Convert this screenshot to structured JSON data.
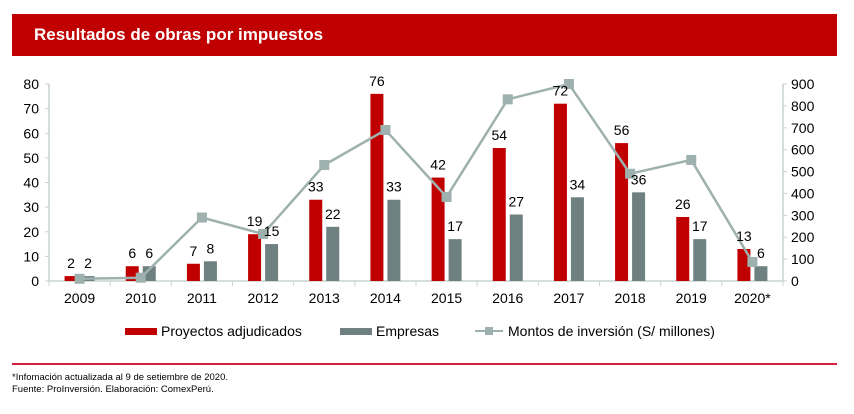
{
  "header": {
    "title": "Resultados de obras por impuestos"
  },
  "colors": {
    "banner": "#C00000",
    "proyectos": "#C00000",
    "empresas": "#6E8080",
    "montos": "#9FB1AE",
    "axis": "#C8D4D2",
    "separator": "#D6203C"
  },
  "chart_data": {
    "type": "bar",
    "title": "Resultados de obras por impuestos",
    "categories": [
      "2009",
      "2010",
      "2011",
      "2012",
      "2013",
      "2014",
      "2015",
      "2016",
      "2017",
      "2018",
      "2019",
      "2020*"
    ],
    "series": [
      {
        "name": "Proyectos adjudicados",
        "type": "bar",
        "axis": "left",
        "values": [
          2,
          6,
          7,
          19,
          33,
          76,
          42,
          54,
          72,
          56,
          26,
          13
        ]
      },
      {
        "name": "Empresas",
        "type": "bar",
        "axis": "left",
        "values": [
          2,
          6,
          8,
          15,
          22,
          33,
          17,
          27,
          34,
          36,
          17,
          6
        ]
      },
      {
        "name": "Montos de inversión (S/ millones)",
        "type": "line",
        "axis": "right",
        "values": [
          10,
          15,
          290,
          215,
          530,
          690,
          384,
          830,
          900,
          490,
          553,
          87
        ]
      }
    ],
    "y_left": {
      "ylim": [
        0,
        80
      ],
      "ticks": [
        "0",
        "10",
        "20",
        "30",
        "40",
        "50",
        "60",
        "70",
        "80"
      ]
    },
    "y_right": {
      "ylim": [
        0,
        900
      ],
      "ticks": [
        "0",
        "100",
        "200",
        "300",
        "400",
        "500",
        "600",
        "700",
        "800",
        "900"
      ]
    },
    "legend": {
      "position": "bottom",
      "entries": [
        "Proyectos adjudicados",
        "Empresas",
        "Montos de inversión (S/ millones)"
      ]
    },
    "grid": false
  },
  "footnotes": {
    "note": "*Infomación actualizada al 9 de setiembre de 2020.",
    "source": "Fuente: ProInversión. Elaboración: ComexPerú."
  }
}
